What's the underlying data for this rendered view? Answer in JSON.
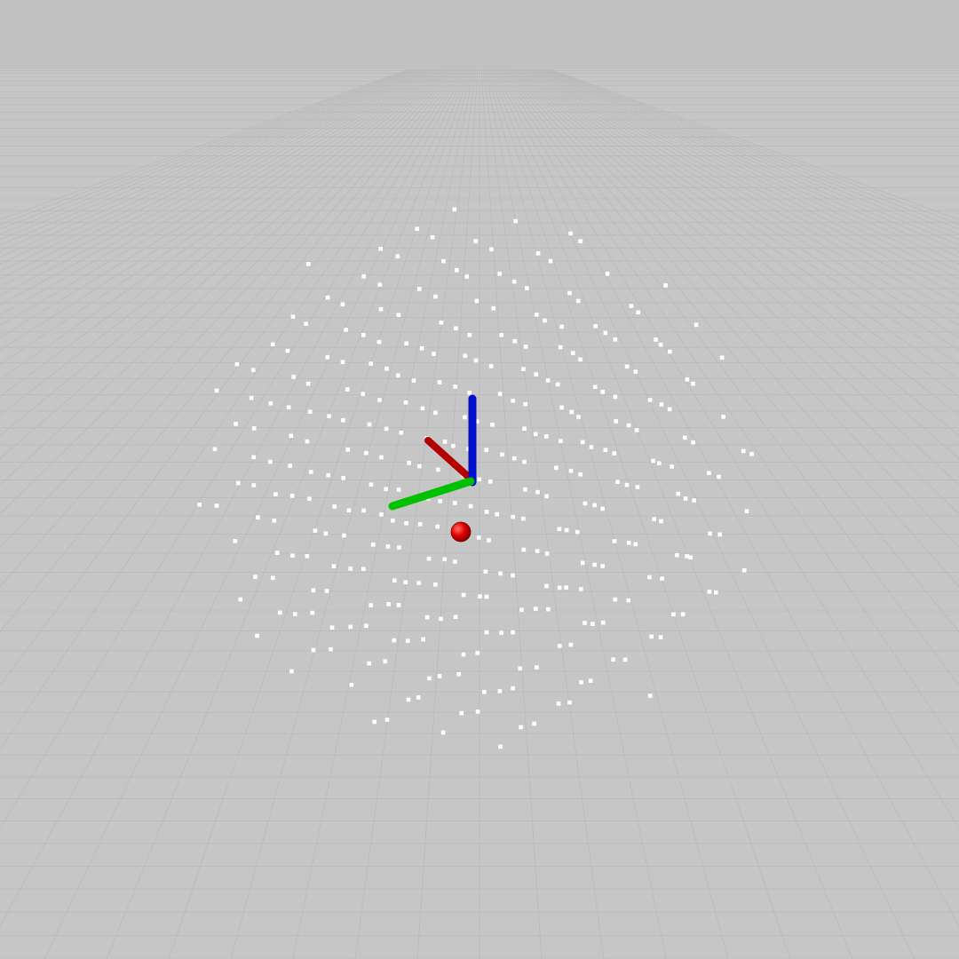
{
  "viewer": {
    "background_color": "#bfbfbf",
    "sky_color": "#c1c1c1",
    "ground_color": "#c6c6c6",
    "grid_line_color": "#b6b6b6",
    "point_color": "#ffffff",
    "grid_visible": true
  },
  "axes_marker": {
    "x_axis_color": "#b30000",
    "y_axis_color": "#00c000",
    "z_axis_color": "#0010c8",
    "icon": "axes-triad-icon"
  },
  "target_marker": {
    "color": "#e00000",
    "icon": "sphere-marker-icon"
  },
  "point_cloud": {
    "shape": "ellipsoid-lattice",
    "grid_steps": 9
  }
}
